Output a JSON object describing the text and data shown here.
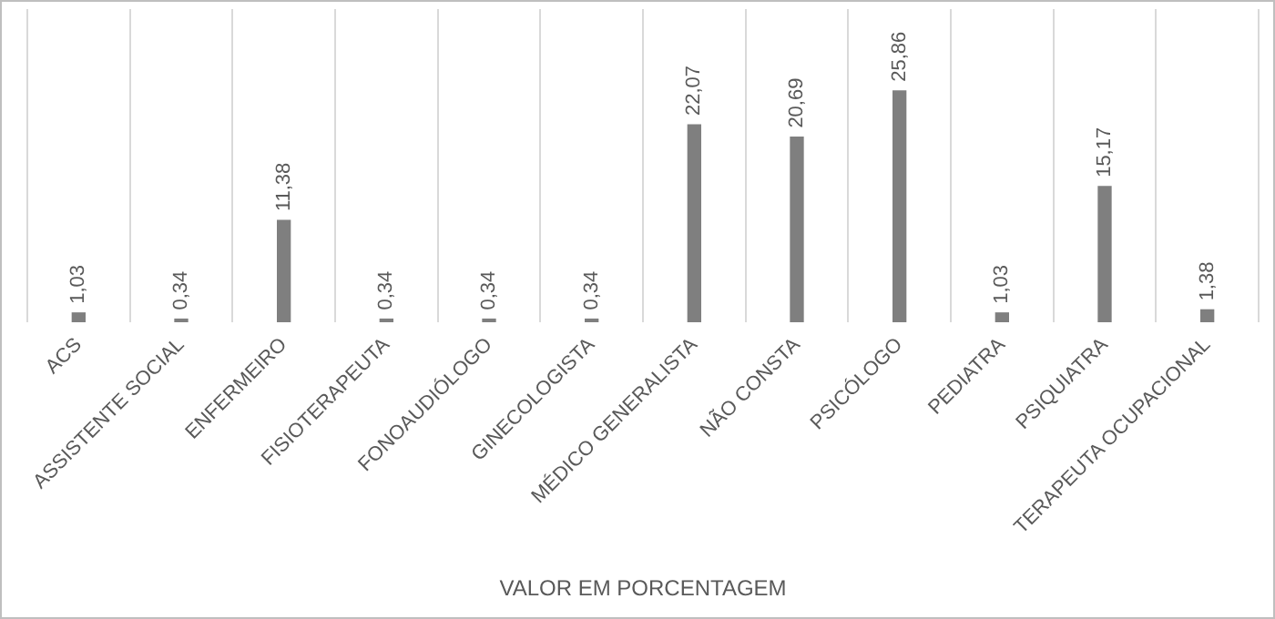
{
  "chart_data": {
    "type": "bar",
    "xlabel": "VALOR EM PORCENTAGEM",
    "categories": [
      "ACS",
      "ASSISTENTE SOCIAL",
      "ENFERMEIRO",
      "FISIOTERAPEUTA",
      "FONOAUDIÓLOGO",
      "GINECOLOGISTA",
      "MÉDICO GENERALISTA",
      "NÃO CONSTA",
      "PSICÓLOGO",
      "PEDIATRA",
      "PSIQUIATRA",
      "TERAPEUTA OCUPACIONAL"
    ],
    "values": [
      1.03,
      0.34,
      11.38,
      0.34,
      0.34,
      0.34,
      22.07,
      20.69,
      25.86,
      1.03,
      15.17,
      1.38
    ],
    "value_labels": [
      "1,03",
      "0,34",
      "11,38",
      "0,34",
      "0,34",
      "0,34",
      "22,07",
      "20,69",
      "25,86",
      "1,03",
      "15,17",
      "1,38"
    ],
    "color": "#7f7f7f",
    "grid": "x",
    "legend": false
  }
}
